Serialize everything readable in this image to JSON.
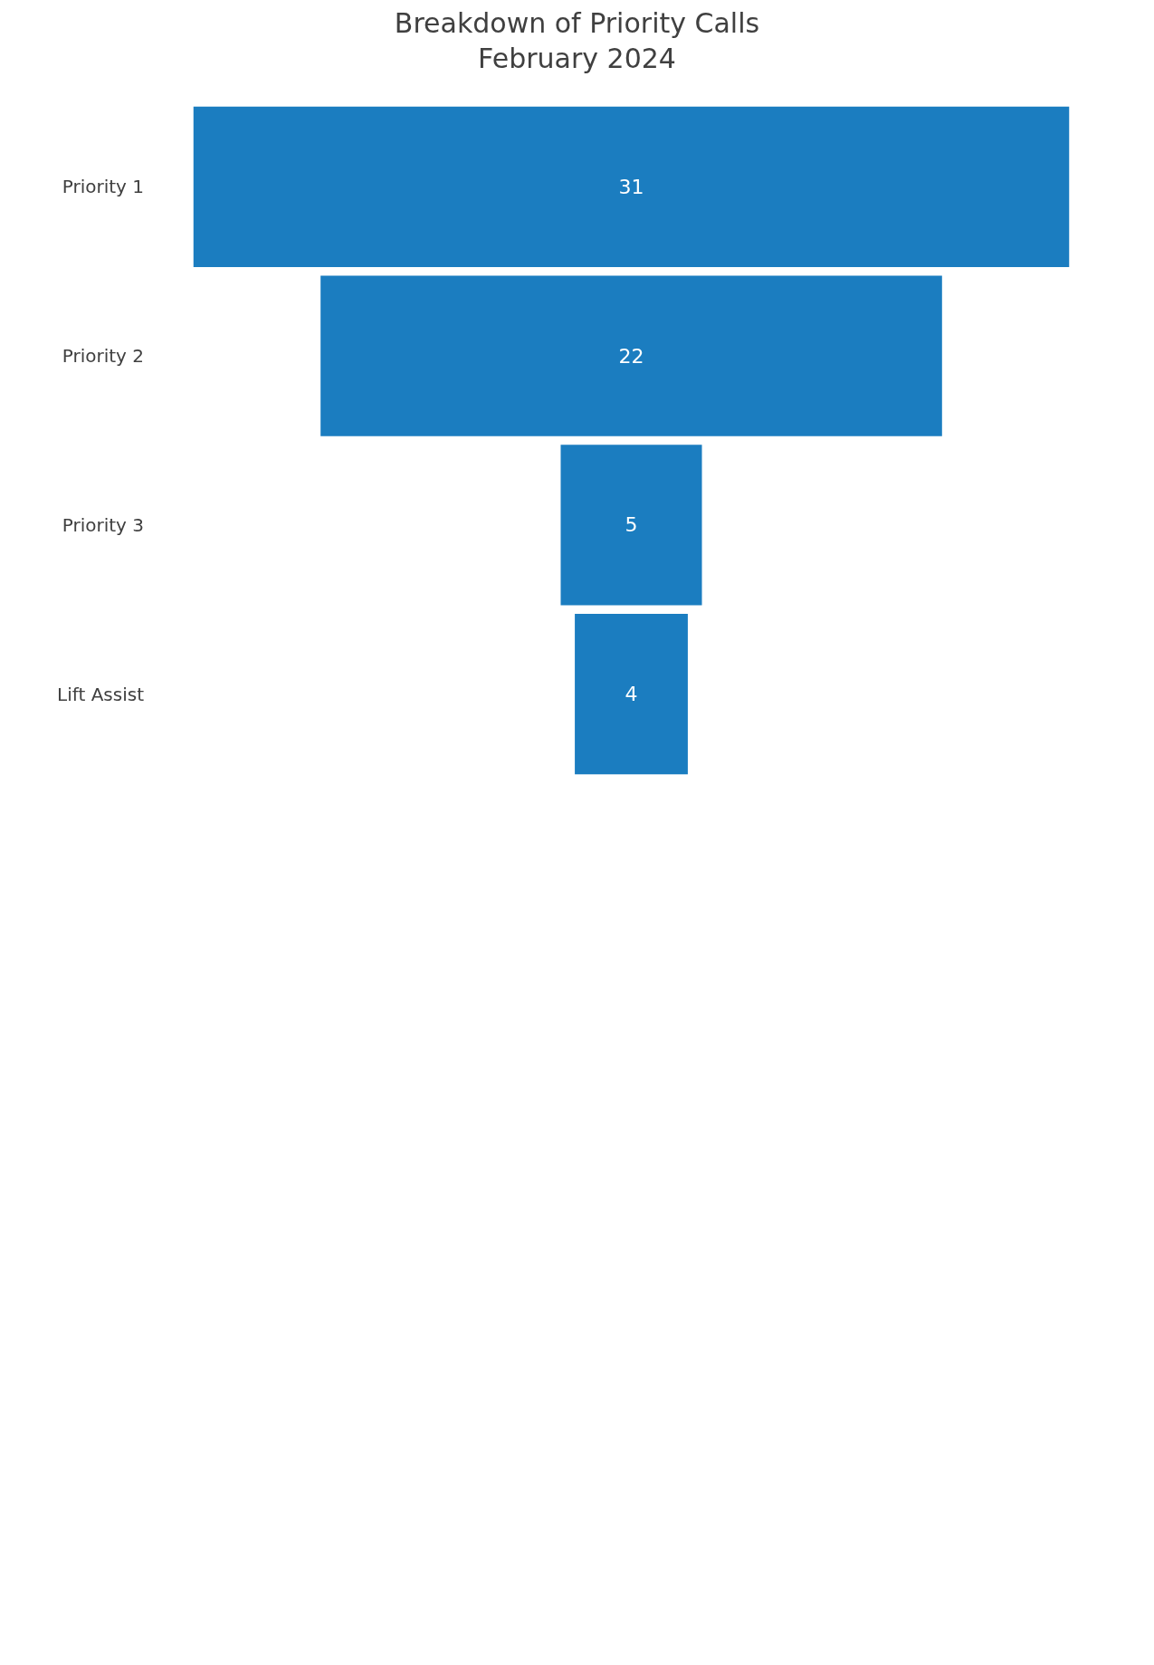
{
  "chart_data": {
    "type": "other",
    "title": "Breakdown of Priority Calls\nFebruary 2024",
    "categories": [
      "Priority 1",
      "Priority 2",
      "Priority 3",
      "Lift Assist"
    ],
    "values": [
      31,
      22,
      5,
      4
    ],
    "color": "#1b7dc0",
    "data_labels": true
  }
}
